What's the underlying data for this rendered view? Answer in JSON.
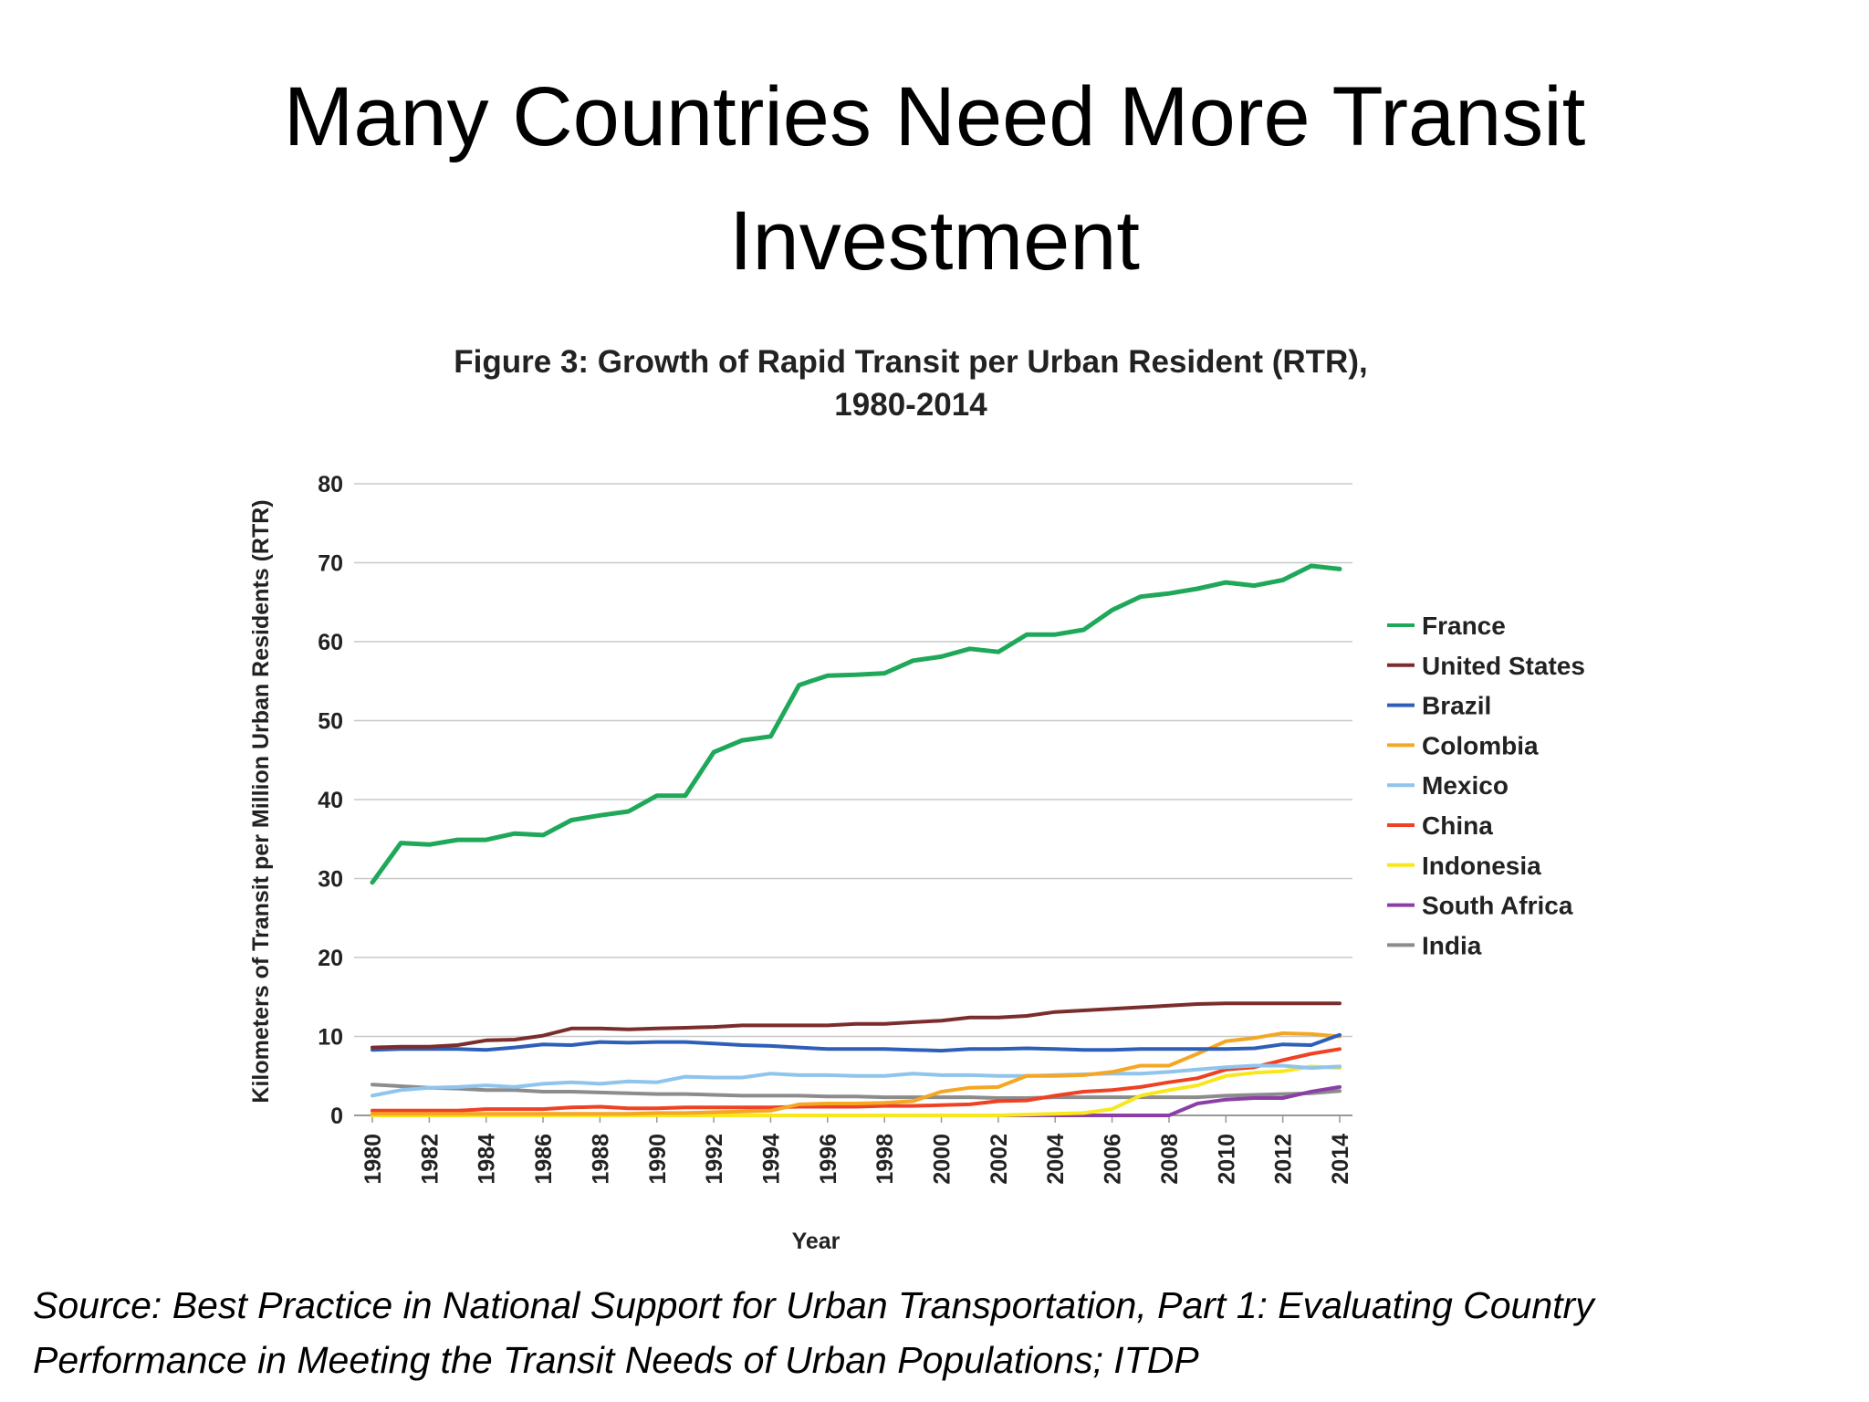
{
  "slide": {
    "title_line1": "Many Countries Need More Transit",
    "title_line2": "Investment",
    "source_line1": "Source:  Best Practice in National Support for Urban Transportation, Part 1: Evaluating Country",
    "source_line2": "Performance in Meeting the Transit Needs of Urban Populations; ITDP"
  },
  "chart_data": {
    "type": "line",
    "title": "Figure 3: Growth of Rapid Transit per Urban Resident (RTR),",
    "subtitle": "1980-2014",
    "xlabel": "Year",
    "ylabel": "Kilometers of Transit per Million Urban Residents (RTR)",
    "ylim": [
      0,
      80
    ],
    "yticks": [
      0,
      10,
      20,
      30,
      40,
      50,
      60,
      70,
      80
    ],
    "x": [
      1980,
      1981,
      1982,
      1983,
      1984,
      1985,
      1986,
      1987,
      1988,
      1989,
      1990,
      1991,
      1992,
      1993,
      1994,
      1995,
      1996,
      1997,
      1998,
      1999,
      2000,
      2001,
      2002,
      2003,
      2004,
      2005,
      2006,
      2007,
      2008,
      2009,
      2010,
      2011,
      2012,
      2013,
      2014
    ],
    "xticks": [
      "1980",
      "1982",
      "1984",
      "1986",
      "1988",
      "1990",
      "1992",
      "1994",
      "1996",
      "1998",
      "2000",
      "2002",
      "2004",
      "2006",
      "2008",
      "2010",
      "2012",
      "2014"
    ],
    "grid": "horizontal",
    "legend_position": "right",
    "series": [
      {
        "name": "France",
        "color": "#1fa85a",
        "values": [
          29.5,
          34.5,
          34.3,
          34.9,
          34.9,
          35.7,
          35.5,
          37.4,
          38.0,
          38.5,
          40.5,
          40.5,
          46.0,
          47.5,
          48.0,
          54.5,
          55.7,
          55.8,
          56.0,
          57.6,
          58.1,
          59.1,
          58.7,
          60.9,
          60.9,
          61.5,
          64.0,
          65.7,
          66.1,
          66.7,
          67.5,
          67.1,
          67.8,
          69.6,
          69.2
        ]
      },
      {
        "name": "United States",
        "color": "#7b2d2d",
        "values": [
          8.6,
          8.7,
          8.7,
          8.9,
          9.5,
          9.6,
          10.1,
          11.0,
          11.0,
          10.9,
          11.0,
          11.1,
          11.2,
          11.4,
          11.4,
          11.4,
          11.4,
          11.6,
          11.6,
          11.8,
          12.0,
          12.4,
          12.4,
          12.6,
          13.1,
          13.3,
          13.5,
          13.7,
          13.9,
          14.1,
          14.2,
          14.2,
          14.2,
          14.2,
          14.2
        ]
      },
      {
        "name": "Brazil",
        "color": "#2e5fb8",
        "values": [
          8.3,
          8.4,
          8.4,
          8.4,
          8.3,
          8.6,
          9.0,
          8.9,
          9.3,
          9.2,
          9.3,
          9.3,
          9.1,
          8.9,
          8.8,
          8.6,
          8.4,
          8.4,
          8.4,
          8.3,
          8.2,
          8.4,
          8.4,
          8.5,
          8.4,
          8.3,
          8.3,
          8.4,
          8.4,
          8.4,
          8.4,
          8.5,
          9.0,
          8.9,
          10.2
        ]
      },
      {
        "name": "Colombia",
        "color": "#f5a623",
        "values": [
          0.2,
          0.2,
          0.2,
          0.2,
          0.2,
          0.2,
          0.2,
          0.2,
          0.2,
          0.2,
          0.3,
          0.3,
          0.4,
          0.5,
          0.6,
          1.4,
          1.5,
          1.5,
          1.6,
          1.8,
          3.0,
          3.5,
          3.6,
          5.0,
          5.0,
          5.1,
          5.5,
          6.3,
          6.3,
          7.8,
          9.4,
          9.8,
          10.4,
          10.3,
          10.0
        ]
      },
      {
        "name": "Mexico",
        "color": "#8fc4ec",
        "values": [
          2.5,
          3.2,
          3.5,
          3.6,
          3.8,
          3.6,
          4.0,
          4.2,
          4.0,
          4.3,
          4.2,
          4.9,
          4.8,
          4.8,
          5.3,
          5.1,
          5.1,
          5.0,
          5.0,
          5.3,
          5.1,
          5.1,
          5.0,
          5.0,
          5.1,
          5.2,
          5.3,
          5.3,
          5.5,
          5.8,
          6.1,
          6.3,
          6.3,
          6.0,
          6.2
        ]
      },
      {
        "name": "China",
        "color": "#ef4123",
        "values": [
          0.6,
          0.6,
          0.6,
          0.6,
          0.8,
          0.8,
          0.8,
          1.0,
          1.1,
          0.9,
          0.9,
          1.0,
          1.0,
          1.0,
          1.0,
          1.1,
          1.1,
          1.1,
          1.2,
          1.2,
          1.3,
          1.4,
          1.8,
          1.9,
          2.5,
          3.0,
          3.2,
          3.6,
          4.2,
          4.7,
          5.8,
          6.1,
          7.0,
          7.8,
          8.4
        ]
      },
      {
        "name": "Indonesia",
        "color": "#f7e71c",
        "values": [
          0,
          0,
          0,
          0,
          0,
          0,
          0,
          0,
          0,
          0,
          0,
          0,
          0,
          0,
          0,
          0,
          0,
          0,
          0,
          0,
          0,
          0,
          0,
          0.1,
          0.2,
          0.3,
          0.8,
          2.5,
          3.2,
          3.8,
          5.0,
          5.4,
          5.6,
          6.2,
          6.0
        ]
      },
      {
        "name": "South Africa",
        "color": "#8b3fa6",
        "values": [
          0,
          0,
          0,
          0,
          0,
          0,
          0,
          0,
          0,
          0,
          0,
          0,
          0,
          0,
          0,
          0,
          0,
          0,
          0,
          0,
          0,
          0,
          0,
          0,
          0,
          0,
          0,
          0,
          0,
          1.5,
          2.0,
          2.2,
          2.2,
          3.0,
          3.6
        ]
      },
      {
        "name": "India",
        "color": "#8c8c8c",
        "values": [
          3.9,
          3.7,
          3.5,
          3.4,
          3.2,
          3.2,
          3.0,
          3.0,
          2.9,
          2.8,
          2.7,
          2.7,
          2.6,
          2.5,
          2.5,
          2.5,
          2.4,
          2.4,
          2.3,
          2.3,
          2.3,
          2.3,
          2.2,
          2.2,
          2.3,
          2.3,
          2.3,
          2.3,
          2.3,
          2.3,
          2.5,
          2.6,
          2.7,
          2.8,
          3.1
        ]
      }
    ]
  }
}
